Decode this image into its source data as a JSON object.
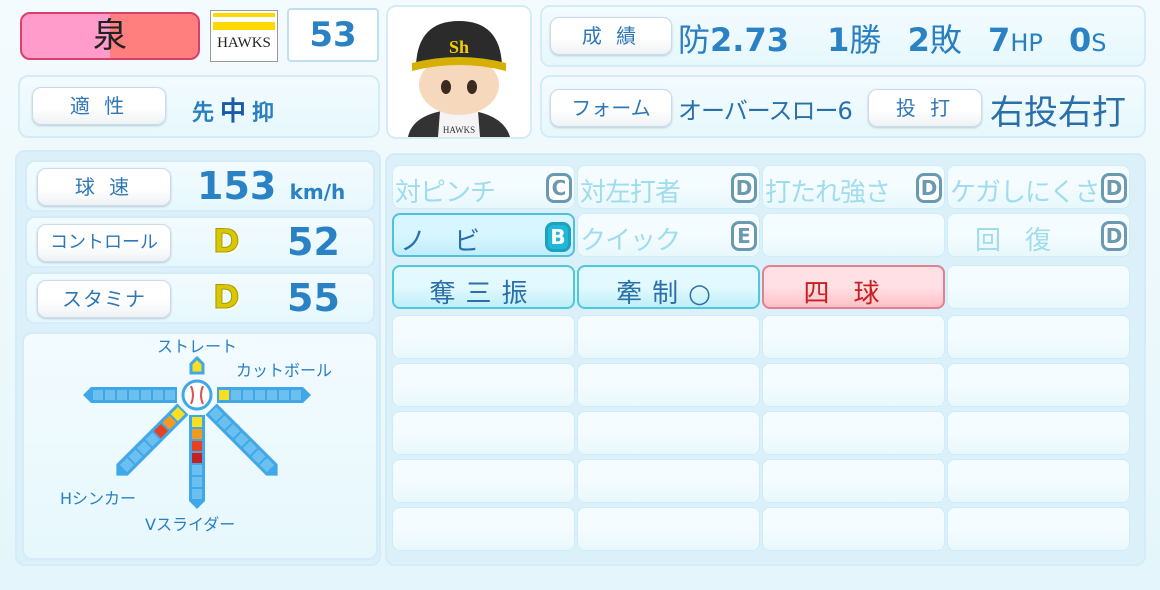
{
  "player": {
    "name": "泉",
    "team_logo_text": "HAWKS",
    "number": "53"
  },
  "aptitude": {
    "label": "適 性",
    "values": [
      {
        "text": "先",
        "active": false
      },
      {
        "text": "中",
        "active": true
      },
      {
        "text": "抑",
        "active": false
      }
    ]
  },
  "record": {
    "label": "成 績",
    "era_prefix": "防",
    "era": "2.73",
    "wins": "1",
    "wins_unit": "勝",
    "losses": "2",
    "losses_unit": "敗",
    "holds": "7",
    "holds_unit": "HP",
    "saves": "0",
    "saves_unit": "S"
  },
  "form": {
    "label": "フォーム",
    "value": "オーバースロー6",
    "throwbat_label": "投 打",
    "throwbat_value": "右投右打"
  },
  "speed": {
    "label": "球 速",
    "value": "153",
    "unit": "km/h"
  },
  "control": {
    "label": "コントロール",
    "grade": "D",
    "value": "52"
  },
  "stamina": {
    "label": "スタミナ",
    "grade": "D",
    "value": "55"
  },
  "pitches": {
    "straight": "ストレート",
    "right": {
      "name": "カットボール",
      "level": 1
    },
    "left": {
      "level": 0
    },
    "down_left": {
      "name": "Hシンカー",
      "level": 3
    },
    "down": {
      "name": "Vスライダー",
      "level": 4
    },
    "down_right": {
      "level": 0
    },
    "level_colors": [
      "#f8e020",
      "#f09a20",
      "#e84020",
      "#c82020"
    ]
  },
  "abilities": [
    [
      {
        "text": "対ピンチ",
        "grade": "C",
        "style": "dim"
      },
      {
        "text": "対左打者",
        "grade": "D",
        "style": "dim"
      },
      {
        "text": "打たれ強さ",
        "grade": "D",
        "style": "dim"
      },
      {
        "text": "ケガしにくさ",
        "grade": "D",
        "style": "dim"
      }
    ],
    [
      {
        "text": "ノ　ビ",
        "grade": "B",
        "style": "hl"
      },
      {
        "text": "クイック",
        "grade": "E",
        "style": "dim"
      },
      {
        "text": "",
        "grade": "",
        "style": "dim"
      },
      {
        "text": "　回　復",
        "grade": "D",
        "style": "dim"
      }
    ],
    [
      {
        "text": "奪三振",
        "style": "blue"
      },
      {
        "text": "牽制○",
        "style": "blue"
      },
      {
        "text": "四球",
        "style": "red"
      },
      {
        "text": "",
        "style": "empty"
      }
    ],
    [
      {},
      {},
      {},
      {}
    ],
    [
      {},
      {},
      {},
      {}
    ],
    [
      {},
      {},
      {},
      {}
    ],
    [
      {},
      {},
      {},
      {}
    ],
    [
      {},
      {},
      {},
      {}
    ]
  ]
}
